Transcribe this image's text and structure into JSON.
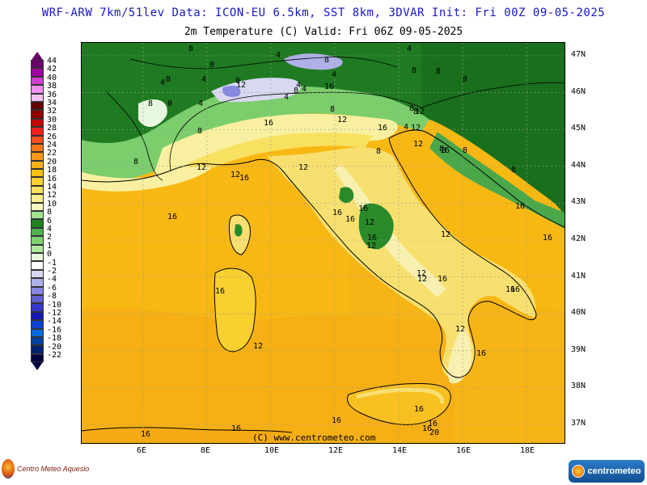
{
  "header": {
    "title": "WRF-ARW 7km/51lev  Data: ICON-EU 6.5km, SST 8km, 3DVAR  Init: Fri 00Z 09-05-2025",
    "subtitle": "2m Temperature (C)  Valid: Fri 06Z 09-05-2025"
  },
  "colorbar": {
    "labels": [
      "44",
      "42",
      "40",
      "38",
      "36",
      "34",
      "32",
      "30",
      "28",
      "26",
      "24",
      "22",
      "20",
      "18",
      "16",
      "14",
      "12",
      "10",
      "8",
      "6",
      "4",
      "2",
      "1",
      "0",
      "-1",
      "-2",
      "-4",
      "-6",
      "-8",
      "-10",
      "-12",
      "-14",
      "-16",
      "-18",
      "-20",
      "-22"
    ],
    "colors": [
      "#6a006a",
      "#a000a0",
      "#d040d0",
      "#f090f0",
      "#f8c0f0",
      "#600000",
      "#900000",
      "#c00000",
      "#f02020",
      "#f85020",
      "#f87818",
      "#f89818",
      "#f8b018",
      "#f8c010",
      "#f8d030",
      "#f8e060",
      "#f8f090",
      "#f8f8c0",
      "#a0e090",
      "#208020",
      "#50b050",
      "#80d070",
      "#b0e8a0",
      "#e8f8e0",
      "#ffffff",
      "#d8d8f0",
      "#b0b0e8",
      "#8888e0",
      "#6060d0",
      "#3838c8",
      "#1818b8",
      "#1040d0",
      "#0868e0",
      "#0040a0",
      "#002070",
      "#000040"
    ]
  },
  "map": {
    "lat_labels": [
      "47N",
      "46N",
      "45N",
      "44N",
      "43N",
      "42N",
      "41N",
      "40N",
      "39N",
      "38N",
      "37N"
    ],
    "lon_labels": [
      "6E",
      "8E",
      "10E",
      "12E",
      "14E",
      "16E",
      "18E"
    ],
    "contour_labels": [
      "8",
      "0",
      "4",
      "8",
      "4",
      "8",
      "0",
      "4",
      "8",
      "4",
      "4",
      "8",
      "8",
      "4",
      "8",
      "4",
      "4",
      "8",
      "8",
      "8",
      "0",
      "4",
      "8",
      "12",
      "16",
      "16",
      "12",
      "16",
      "4",
      "8",
      "12",
      "8",
      "8",
      "12",
      "16",
      "8",
      "8",
      "12",
      "8",
      "12",
      "12",
      "16",
      "16",
      "8",
      "16",
      "12",
      "16",
      "12",
      "12",
      "12",
      "12",
      "16",
      "16",
      "12",
      "16",
      "16",
      "12",
      "16",
      "16",
      "16",
      "16",
      "12",
      "16",
      "16",
      "16",
      "16",
      "16",
      "16",
      "20",
      "16"
    ]
  },
  "credit": "(C) www.centrometeo.com",
  "branding": {
    "left": "Centro Meteo Aquesio",
    "right": "centrometeo"
  }
}
